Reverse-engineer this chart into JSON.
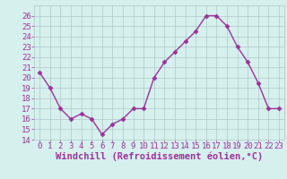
{
  "x": [
    0,
    1,
    2,
    3,
    4,
    5,
    6,
    7,
    8,
    9,
    10,
    11,
    12,
    13,
    14,
    15,
    16,
    17,
    18,
    19,
    20,
    21,
    22,
    23
  ],
  "y": [
    20.5,
    19.0,
    17.0,
    16.0,
    16.5,
    16.0,
    14.5,
    15.5,
    16.0,
    17.0,
    17.0,
    20.0,
    21.5,
    22.5,
    23.5,
    24.5,
    26.0,
    26.0,
    25.0,
    23.0,
    21.5,
    19.5,
    17.0,
    17.0
  ],
  "line_color": "#993399",
  "marker": "D",
  "marker_size": 2.5,
  "bg_color": "#d6f0ee",
  "grid_color": "#b0c8c8",
  "xlabel": "Windchill (Refroidissement éolien,°C)",
  "xlabel_color": "#993399",
  "tick_color": "#993399",
  "label_color": "#993399",
  "xlim": [
    -0.5,
    23.5
  ],
  "ylim": [
    14,
    27
  ],
  "yticks": [
    14,
    15,
    16,
    17,
    18,
    19,
    20,
    21,
    22,
    23,
    24,
    25,
    26
  ],
  "xticks": [
    0,
    1,
    2,
    3,
    4,
    5,
    6,
    7,
    8,
    9,
    10,
    11,
    12,
    13,
    14,
    15,
    16,
    17,
    18,
    19,
    20,
    21,
    22,
    23
  ],
  "tick_fontsize": 6.5,
  "xlabel_fontsize": 7.5,
  "line_width": 1.0
}
